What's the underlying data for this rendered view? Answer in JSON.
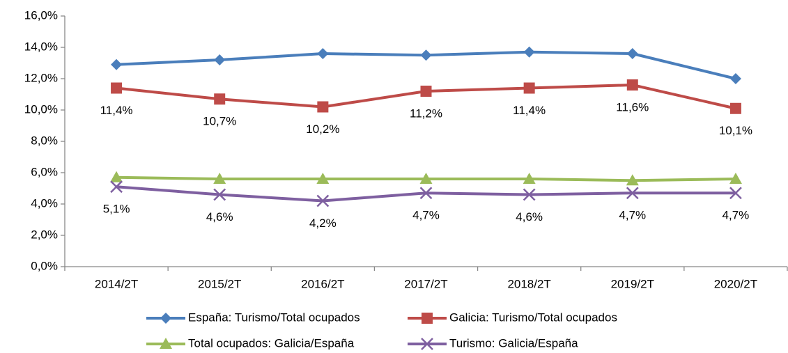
{
  "chart_data": {
    "type": "line",
    "categories": [
      "2014/2T",
      "2015/2T",
      "2016/2T",
      "2017/2T",
      "2018/2T",
      "2019/2T",
      "2020/2T"
    ],
    "series": [
      {
        "name": "España: Turismo/Total ocupados",
        "color": "#4a7ebb",
        "marker": "diamond",
        "values": [
          12.9,
          13.2,
          13.6,
          13.5,
          13.7,
          13.6,
          12.0
        ]
      },
      {
        "name": "Galicia: Turismo/Total ocupados",
        "color": "#be4b48",
        "marker": "square",
        "values": [
          11.4,
          10.7,
          10.2,
          11.2,
          11.4,
          11.6,
          10.1
        ],
        "value_labels": [
          "11,4%",
          "10,7%",
          "10,2%",
          "11,2%",
          "11,4%",
          "11,6%",
          "10,1%"
        ]
      },
      {
        "name": "Total ocupados: Galicia/España",
        "color": "#9bbb59",
        "marker": "triangle",
        "values": [
          5.7,
          5.6,
          5.6,
          5.6,
          5.6,
          5.5,
          5.6
        ]
      },
      {
        "name": "Turismo: Galicia/España",
        "color": "#7e5fa0",
        "marker": "x",
        "values": [
          5.1,
          4.6,
          4.2,
          4.7,
          4.6,
          4.7,
          4.7
        ],
        "value_labels": [
          "5,1%",
          "4,6%",
          "4,2%",
          "4,7%",
          "4,6%",
          "4,7%",
          "4,7%"
        ]
      }
    ],
    "ylim": [
      0,
      16
    ],
    "yticks": [
      {
        "value": 0,
        "label": "0,0%"
      },
      {
        "value": 2,
        "label": "2,0%"
      },
      {
        "value": 4,
        "label": "4,0%"
      },
      {
        "value": 6,
        "label": "6,0%"
      },
      {
        "value": 8,
        "label": "8,0%"
      },
      {
        "value": 10,
        "label": "10,0%"
      },
      {
        "value": 12,
        "label": "12,0%"
      },
      {
        "value": 14,
        "label": "14,0%"
      },
      {
        "value": 16,
        "label": "16,0%"
      }
    ],
    "legend": "bottom"
  }
}
